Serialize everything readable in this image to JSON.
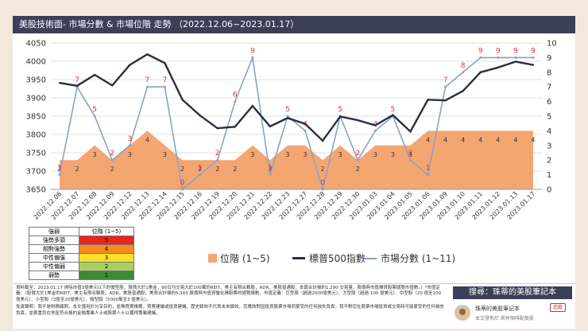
{
  "header": {
    "title": "美股技術面- 市場分數 & 市場位階 走勢 （2022.12.06~2023.01.17）"
  },
  "colors": {
    "area": "#f4a671",
    "sp500": "#2b2d42",
    "score": "#8aa2c8",
    "label_red": "#e03030",
    "header_bg": "#3b3f58"
  },
  "chart_data": {
    "type": "line",
    "title": "美股技術面- 市場分數 & 市場位階 走勢 （2022.12.06~2023.01.17）",
    "categories": [
      "2022.12.06",
      "2022.12.07",
      "2022.12.08",
      "2022.12.09",
      "2022.12.12",
      "2022.12.13",
      "2022.12.14",
      "2022.12.15",
      "2022.12.16",
      "2022.12.19",
      "2022.12.20",
      "2022.12.21",
      "2022.12.22",
      "2022.12.23",
      "2022.12.27",
      "2022.12.28",
      "2022.12.29",
      "2022.12.30",
      "2023.01.03",
      "2023.01.04",
      "2023.01.05",
      "2023.01.06",
      "2023.01.09",
      "2023.01.10",
      "2023.01.11",
      "2023.01.12",
      "2023.01.13",
      "2023.01.17"
    ],
    "left_axis": {
      "ylim": [
        3650,
        4050
      ],
      "ticks": [
        "3650",
        "3700",
        "3750",
        "3800",
        "3850",
        "3900",
        "3950",
        "4000",
        "4050"
      ]
    },
    "right_axis": {
      "ylim": [
        0,
        10
      ],
      "ticks": [
        "0",
        "1",
        "2",
        "3",
        "4",
        "5",
        "6",
        "7",
        "8",
        "9",
        "10"
      ]
    },
    "series": [
      {
        "name": "位階 (1~5)",
        "type": "area",
        "axis": "right",
        "values": [
          2,
          2,
          3,
          2,
          3,
          4,
          3,
          2,
          2,
          2,
          2,
          3,
          2,
          3,
          3,
          2,
          3,
          2,
          3,
          3,
          3,
          4,
          4,
          4,
          4,
          4,
          4,
          4
        ]
      },
      {
        "name": "標普500指數",
        "type": "line",
        "axis": "left",
        "values": [
          3941,
          3933,
          3963,
          3934,
          3990,
          4019,
          3995,
          3895,
          3852,
          3817,
          3821,
          3878,
          3822,
          3845,
          3829,
          3783,
          3849,
          3839,
          3825,
          3853,
          3808,
          3895,
          3893,
          3919,
          3970,
          3983,
          3999,
          3990
        ]
      },
      {
        "name": "市場分數 (1~11)",
        "type": "line",
        "axis": "right",
        "values": [
          1,
          7,
          5,
          2,
          3,
          7,
          7,
          0,
          1,
          2,
          6,
          9,
          1,
          5,
          4,
          0,
          5,
          2,
          4,
          5,
          2,
          1,
          7,
          8,
          9,
          9,
          9,
          9
        ]
      }
    ],
    "legend": {
      "position": "bottom"
    }
  },
  "legend_table": {
    "header": [
      "強弱",
      "位階 (1~5)"
    ],
    "rows": [
      {
        "label": "強勢多頭",
        "value": "5",
        "color": "#e8261c"
      },
      {
        "label": "相對強勢",
        "value": "4",
        "color": "#f58a1e"
      },
      {
        "label": "中性偏強",
        "value": "3",
        "color": "#f7e12a"
      },
      {
        "label": "中性偏弱",
        "value": "2",
        "color": "#a7d15d"
      },
      {
        "label": "弱勢",
        "value": "1",
        "color": "#3d8a36"
      }
    ]
  },
  "footer": {
    "note1": "資料截至：2023.01.17 排除市值3億美元以下的微型股，股價大於1美金，90日均交易大於100萬的REIT、美主有限合夥股，ADR，美股普通股，本篇合計樣約1,290 交易量，股價與市值擇資股票總覽市值數。）*市值定義：（股價大於1美金的REIT、美主有限合夥股，ADR，美股普通股，美表合計樣約5,343 股價與市值資優化擇股票的總覽樣數，市值定義：巨型股（超過2000億美元）、大型股（超過 100 億美元）、中型股（20 億至100 億美元）、小型股（3億至20億美元）、微型股（5000萬至3 億美元）。",
    "note2": "免責聲明：我不是財務顧問，本文僅用於分享目的，並無買賣推薦，買賣建議或投資建議，歷史績效不代表未來績效，您應該對因投資股票市場而蒙受的任何損失負責，我不對您在股票市場投資或交易時可能蒙受的任何損失負責，並鄭重您在地區符合格的金融專業人士或股票人士以獲得專業建議。",
    "search_label": "搜尋：珠蒂的美股筆記本",
    "author_name": "珠蒂的美股筆記本",
    "subscribe": "追蹤",
    "author_desc": "本文發佈於 來杯咖啡配美股"
  }
}
